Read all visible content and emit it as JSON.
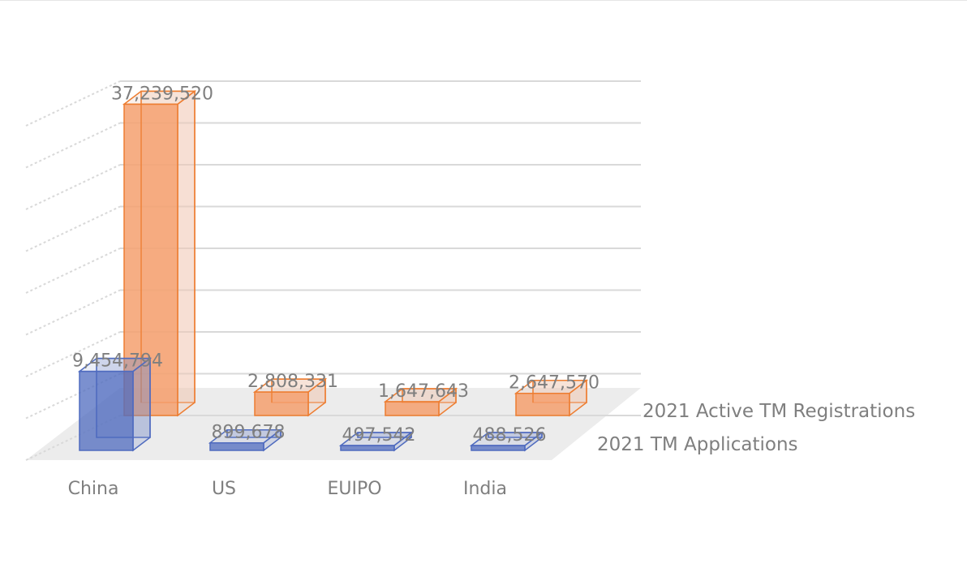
{
  "chart_data": {
    "type": "bar",
    "view": "3d",
    "categories": [
      "China",
      "US",
      "EUIPO",
      "India"
    ],
    "series": [
      {
        "name": "2021 TM Applications",
        "values": [
          9454794,
          899678,
          497542,
          488526
        ],
        "labels": [
          "9,454,794",
          "899,678",
          "497,542",
          "488,526"
        ],
        "color": "#4f6bbf"
      },
      {
        "name": "2021 Active TM Registrations",
        "values": [
          37239520,
          2808331,
          1647643,
          2647570
        ],
        "labels": [
          "37,239,520",
          "2,808,331",
          "1,647,643",
          "2,647,570"
        ],
        "color": "#ed7d31"
      }
    ],
    "title": "",
    "xlabel": "",
    "ylabel": "",
    "ylim": [
      0,
      40000000
    ],
    "grid": true,
    "legend": "right (series axis labels)"
  }
}
